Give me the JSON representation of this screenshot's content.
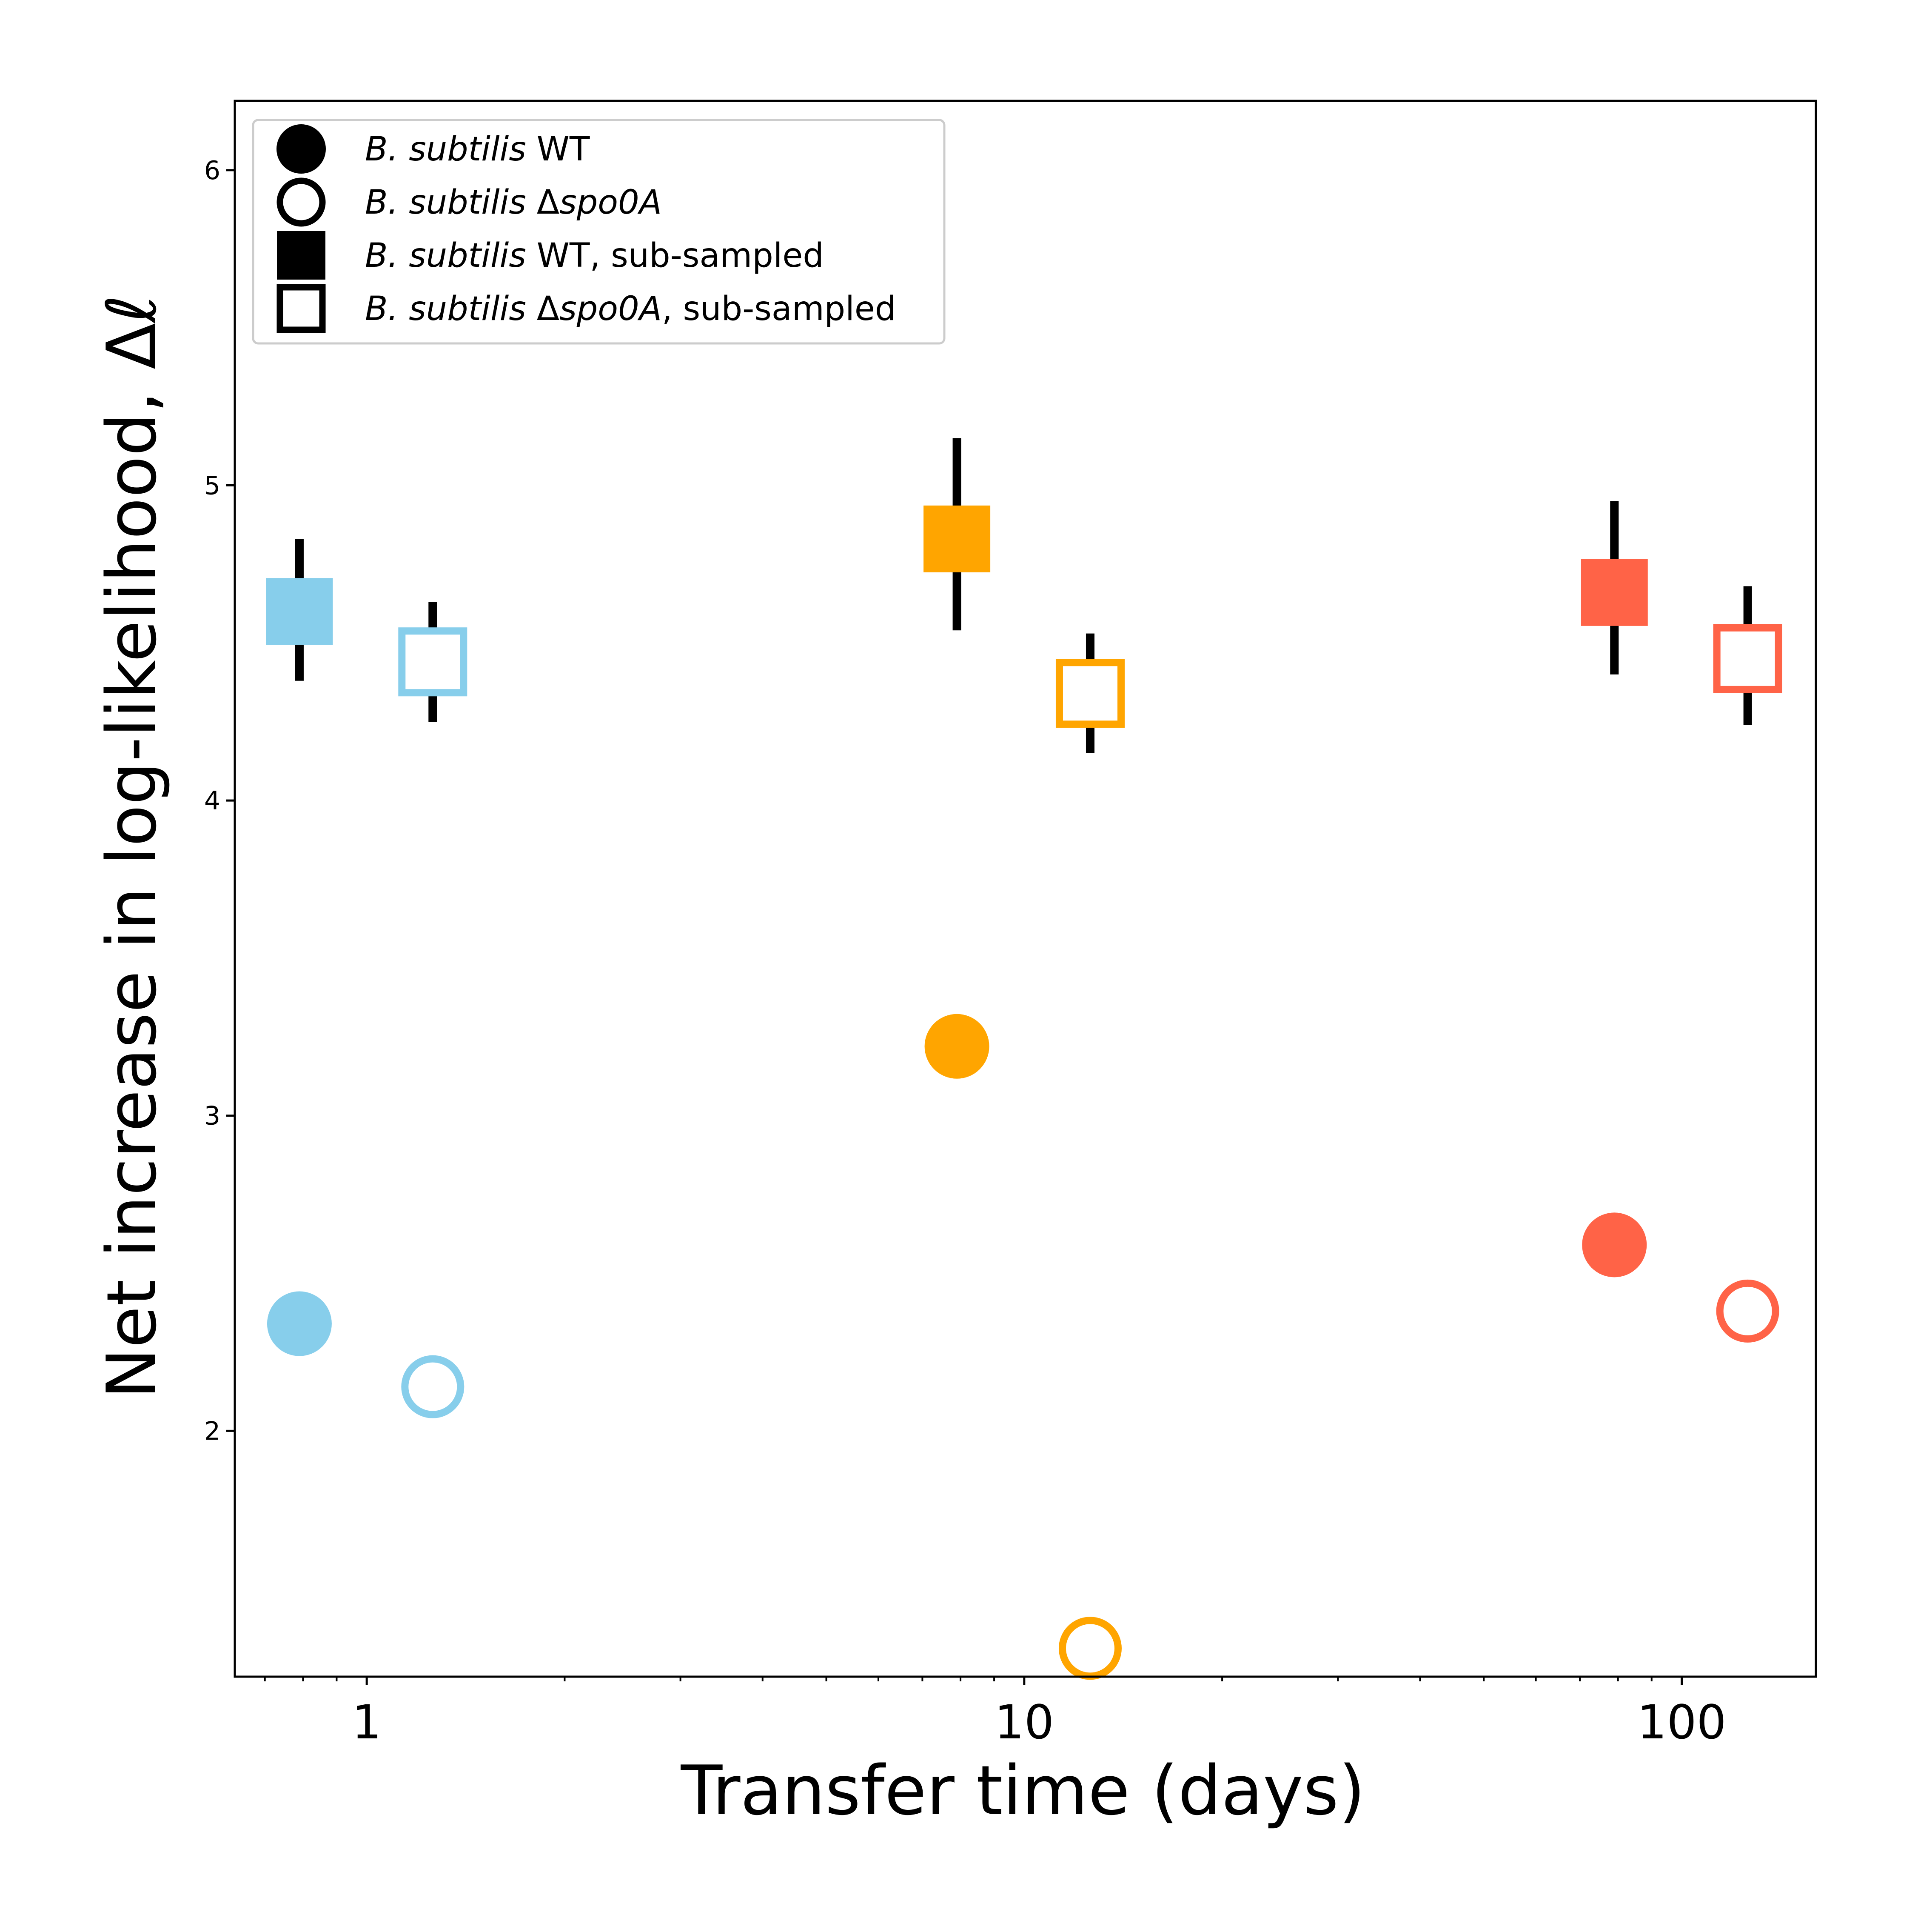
{
  "chart_data": {
    "type": "scatter",
    "xlabel": "Transfer time (days)",
    "ylabel": "Net increase in log-likelihood, Δℓ",
    "xscale": "log",
    "xlim": [
      0.63,
      160
    ],
    "ylim": [
      1.22,
      6.22
    ],
    "x_ticks": [
      1,
      10,
      100
    ],
    "x_tick_labels": [
      "1",
      "10",
      "100"
    ],
    "y_ticks": [
      2,
      3,
      4,
      5,
      6
    ],
    "y_tick_labels": [
      "2",
      "3",
      "4",
      "5",
      "6"
    ],
    "grid": false,
    "legend_position": "top-left",
    "legend": [
      {
        "italic": "B. subtilis",
        "suffix": " WT",
        "marker": "filled-circle"
      },
      {
        "italic": "B. subtilis",
        "delta": " Δ",
        "italic2": "spo0A",
        "suffix": "",
        "marker": "open-circle"
      },
      {
        "italic": "B. subtilis",
        "suffix": " WT, sub-sampled",
        "marker": "filled-square"
      },
      {
        "italic": "B. subtilis",
        "delta": " Δ",
        "italic2": "spo0A",
        "suffix": ", sub-sampled",
        "marker": "open-square"
      }
    ],
    "colors": {
      "1": "#87ceeb",
      "10": "#ffa500",
      "100": "#ff6347",
      "errorbar": "#000000"
    },
    "points": [
      {
        "series": "B. subtilis WT",
        "x": 0.79,
        "y": 2.34,
        "marker": "filled-circle",
        "color_key": "1"
      },
      {
        "series": "B. subtilis Δspo0A",
        "x": 1.26,
        "y": 2.14,
        "marker": "open-circle",
        "color_key": "1"
      },
      {
        "series": "B. subtilis WT",
        "x": 7.9,
        "y": 3.22,
        "marker": "filled-circle",
        "color_key": "10"
      },
      {
        "series": "B. subtilis Δspo0A",
        "x": 12.6,
        "y": 1.31,
        "marker": "open-circle",
        "color_key": "10"
      },
      {
        "series": "B. subtilis WT",
        "x": 79,
        "y": 2.59,
        "marker": "filled-circle",
        "color_key": "100"
      },
      {
        "series": "B. subtilis Δspo0A",
        "x": 126,
        "y": 2.38,
        "marker": "open-circle",
        "color_key": "100"
      },
      {
        "series": "B. subtilis WT, sub-sampled",
        "x": 0.79,
        "y": 4.6,
        "yerr": [
          4.38,
          4.83
        ],
        "marker": "filled-square",
        "color_key": "1"
      },
      {
        "series": "B. subtilis Δspo0A, sub-sampled",
        "x": 1.26,
        "y": 4.44,
        "yerr": [
          4.25,
          4.63
        ],
        "marker": "open-square",
        "color_key": "1"
      },
      {
        "series": "B. subtilis WT, sub-sampled",
        "x": 7.9,
        "y": 4.83,
        "yerr": [
          4.54,
          5.15
        ],
        "marker": "filled-square",
        "color_key": "10"
      },
      {
        "series": "B. subtilis Δspo0A, sub-sampled",
        "x": 12.6,
        "y": 4.34,
        "yerr": [
          4.15,
          4.53
        ],
        "marker": "open-square",
        "color_key": "10"
      },
      {
        "series": "B. subtilis WT, sub-sampled",
        "x": 79,
        "y": 4.66,
        "yerr": [
          4.4,
          4.95
        ],
        "marker": "filled-square",
        "color_key": "100"
      },
      {
        "series": "B. subtilis Δspo0A, sub-sampled",
        "x": 126,
        "y": 4.45,
        "yerr": [
          4.24,
          4.68
        ],
        "marker": "open-square",
        "color_key": "100"
      }
    ]
  }
}
